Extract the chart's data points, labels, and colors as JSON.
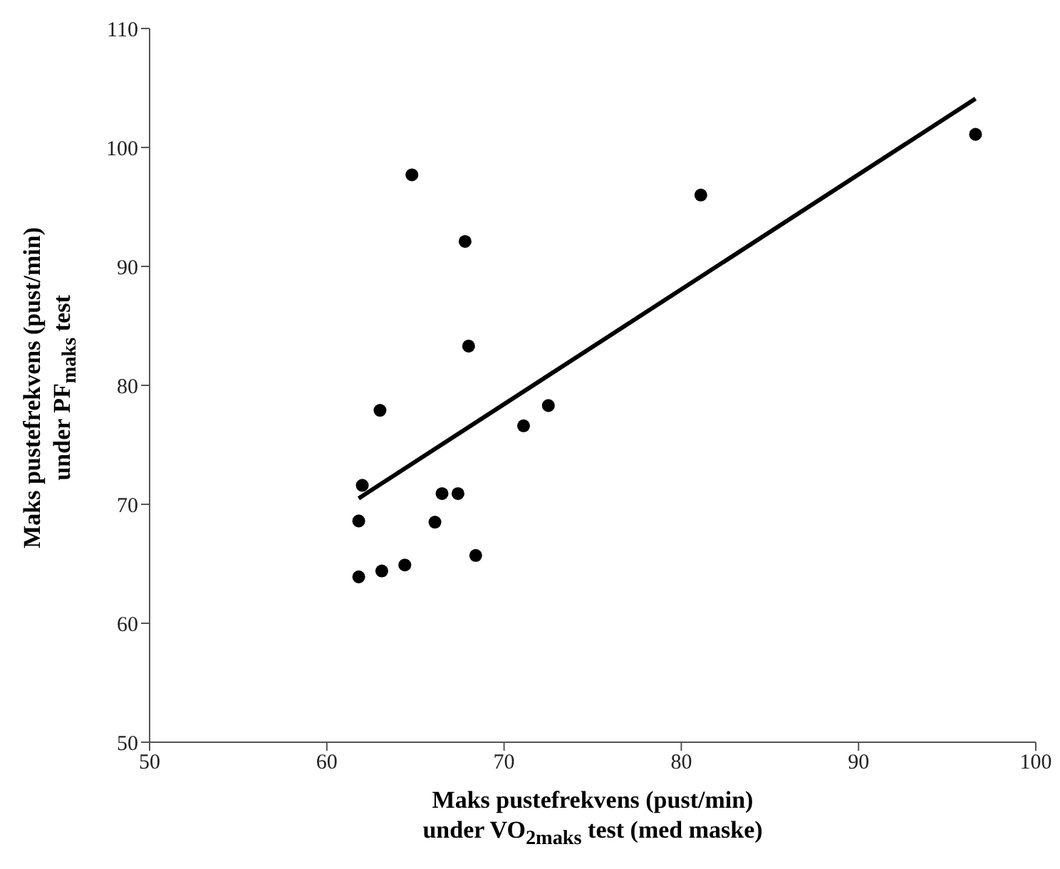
{
  "chart_data": {
    "type": "scatter",
    "xlabel": "Maks pustefrekvens (pust/min)\nunder VO$_{2maks}$ test (med maske)",
    "ylabel": "Maks pustefrekvens (pust/min)\nunder PF$_{maks}$ test",
    "xlim": [
      50,
      100
    ],
    "xticks": [
      50,
      60,
      70,
      80,
      90,
      100
    ],
    "ylim": [
      50,
      110
    ],
    "yticks": [
      50,
      60,
      70,
      80,
      90,
      100,
      110
    ],
    "grid": false,
    "legend": false,
    "series": [
      {
        "color": "#000000",
        "marker": "circle",
        "x": [
          64.8,
          67.8,
          68.0,
          63.0,
          72.5,
          71.1,
          62.0,
          66.5,
          67.4,
          61.8,
          66.1,
          68.4,
          61.8,
          63.1,
          64.4,
          81.1,
          96.6
        ],
        "values": [
          97.7,
          92.1,
          83.3,
          77.9,
          78.3,
          76.6,
          71.6,
          70.9,
          70.9,
          68.6,
          68.5,
          65.7,
          63.9,
          64.4,
          64.9,
          96.0,
          101.1
        ]
      },
      {
        "type": "line",
        "color": "#000000",
        "marker": "none",
        "line_style": "solid",
        "x": [
          61.8,
          96.6
        ],
        "values": [
          70.5,
          104.1
        ]
      }
    ]
  }
}
